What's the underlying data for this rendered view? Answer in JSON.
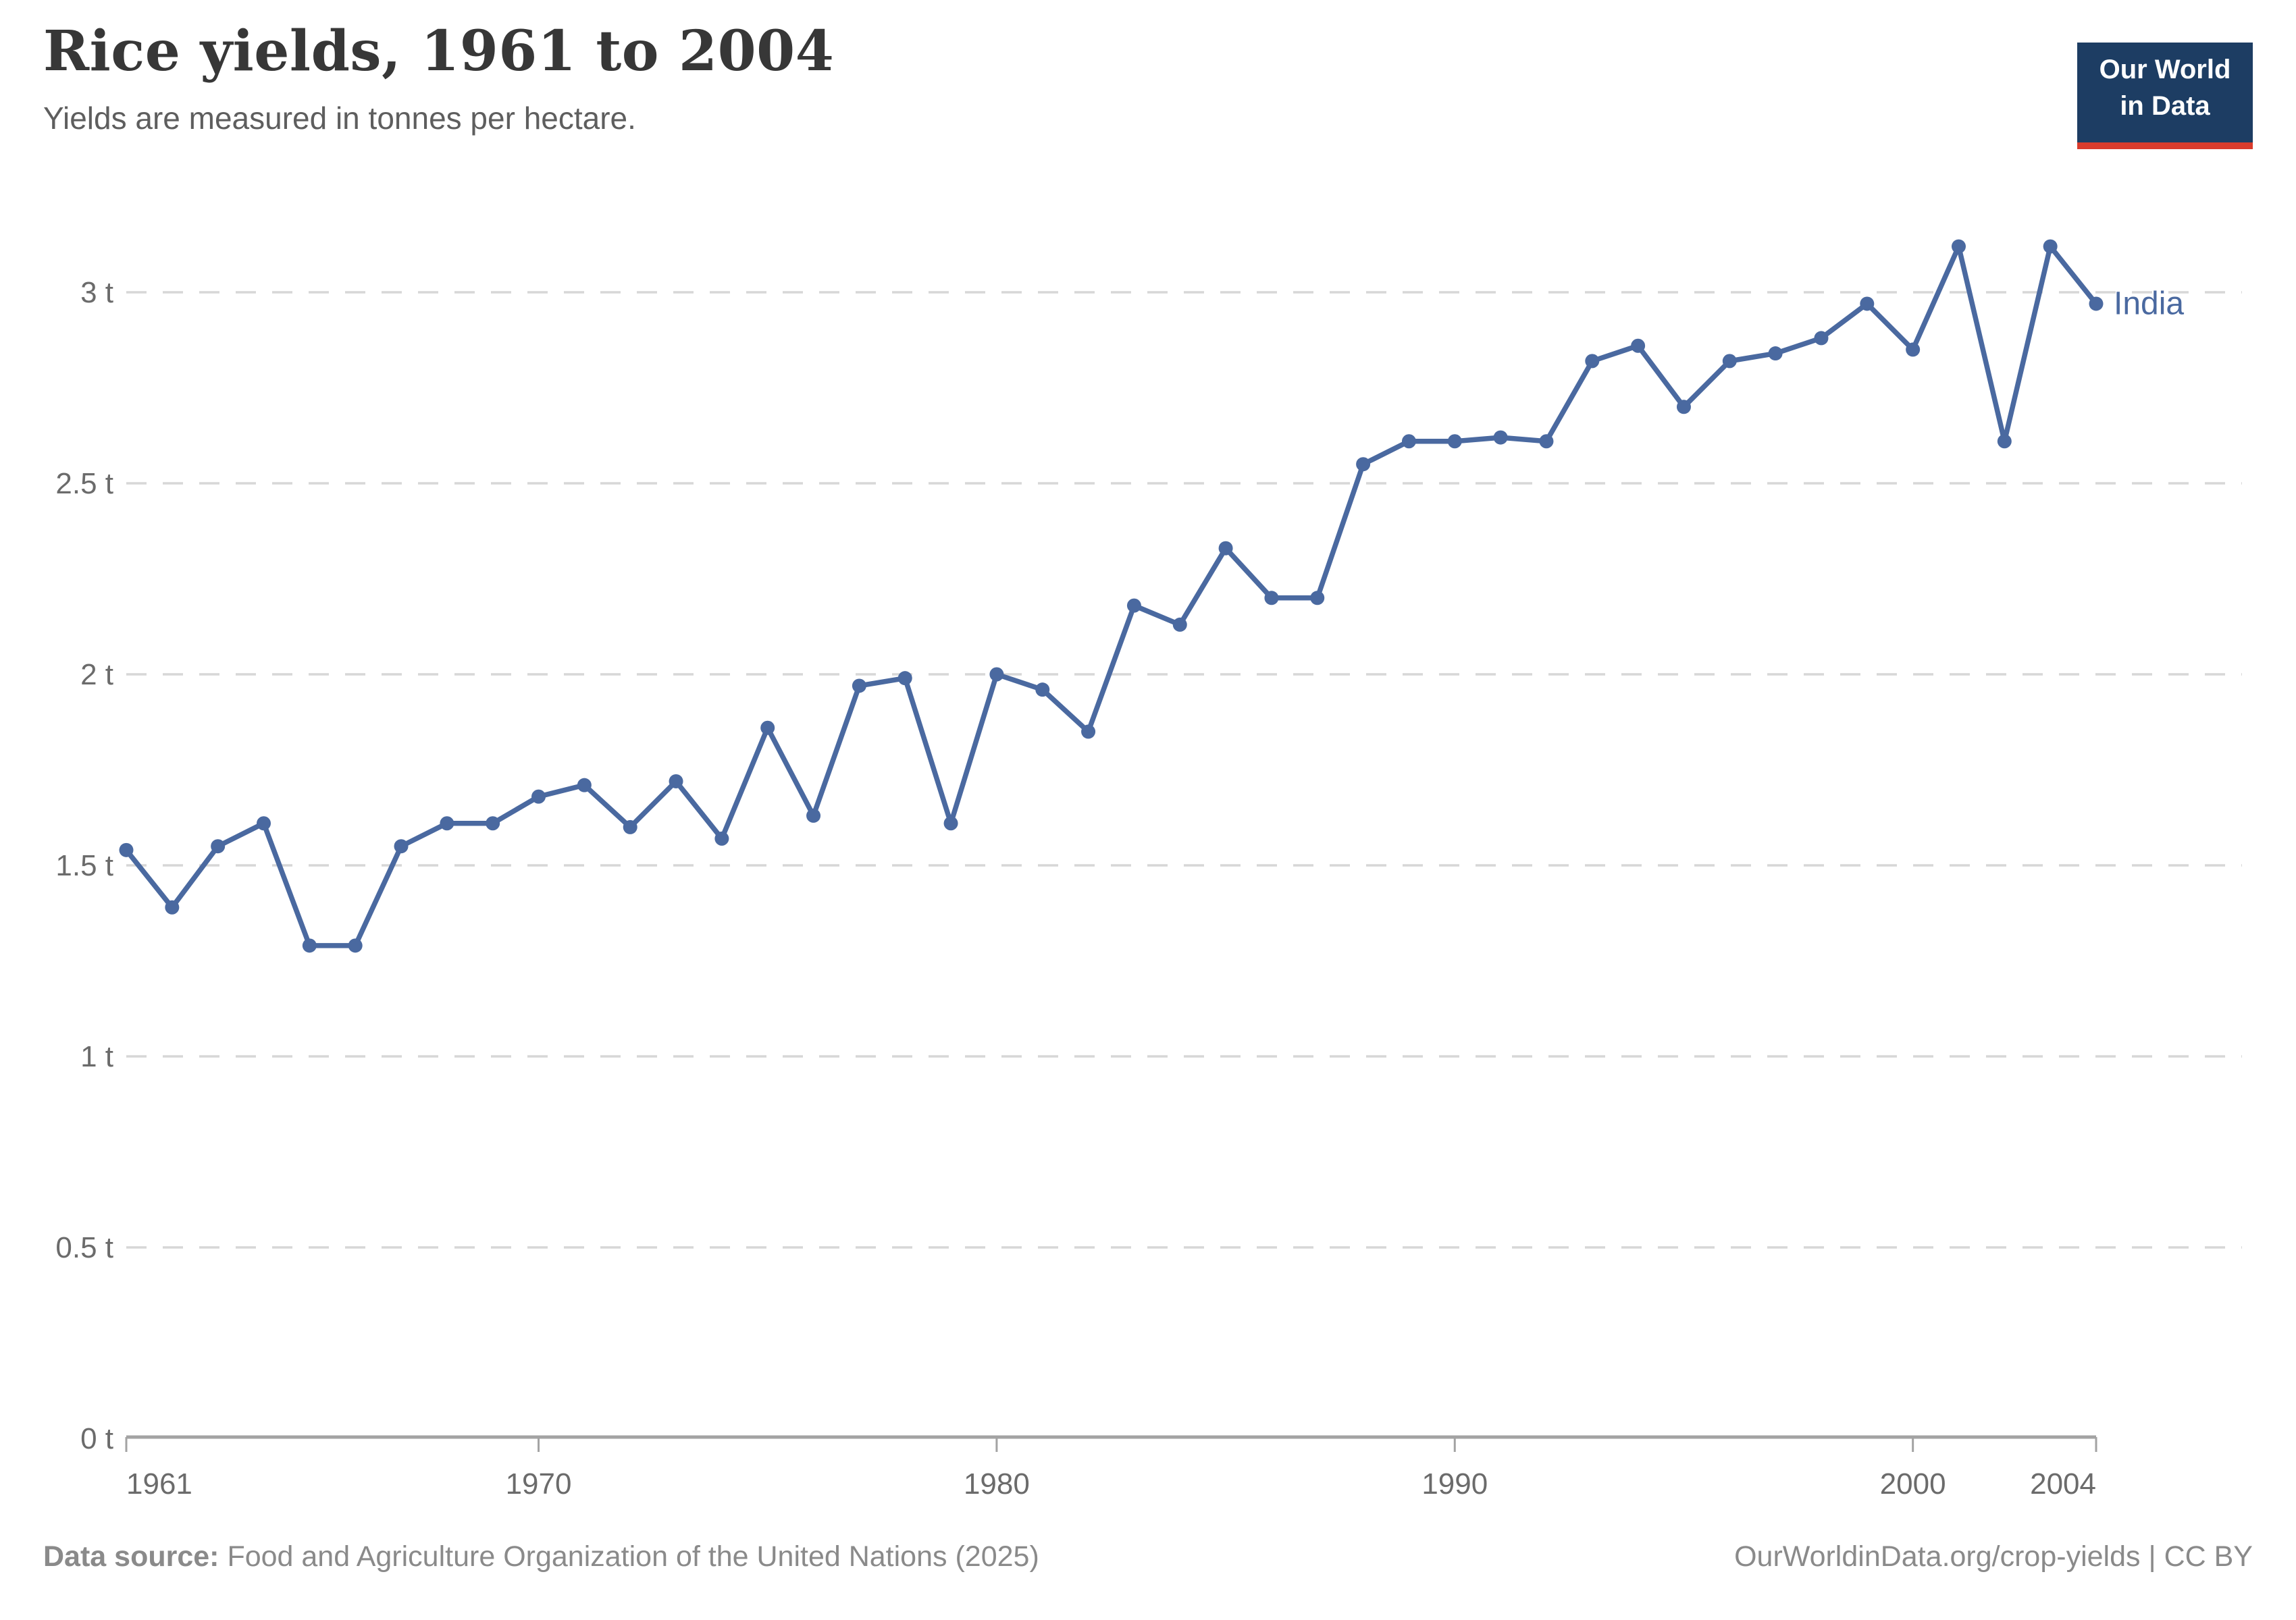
{
  "header": {
    "title": "Rice yields, 1961 to 2004",
    "subtitle": "Yields are measured in tonnes per hectare."
  },
  "logo": {
    "line1": "Our World",
    "line2": "in Data"
  },
  "chart_data": {
    "type": "line",
    "title": "Rice yields, 1961 to 2004",
    "subtitle": "Yields are measured in tonnes per hectare.",
    "unit": "tonnes per hectare",
    "xlim": [
      1961,
      2004
    ],
    "ylim": [
      0,
      3.2
    ],
    "grid": "horizontal-dashed",
    "legend_position": "end-of-line-label",
    "x_ticks": [
      "1961",
      "1970",
      "1980",
      "1990",
      "2000",
      "2004"
    ],
    "y_ticks": [
      {
        "value": 0,
        "label": "0 t"
      },
      {
        "value": 0.5,
        "label": "0.5 t"
      },
      {
        "value": 1,
        "label": "1 t"
      },
      {
        "value": 1.5,
        "label": "1.5 t"
      },
      {
        "value": 2,
        "label": "2 t"
      },
      {
        "value": 2.5,
        "label": "2.5 t"
      },
      {
        "value": 3,
        "label": "3 t"
      }
    ],
    "series": [
      {
        "name": "India",
        "color": "#4A69A0",
        "x": [
          1961,
          1962,
          1963,
          1964,
          1965,
          1966,
          1967,
          1968,
          1969,
          1970,
          1971,
          1972,
          1973,
          1974,
          1975,
          1976,
          1977,
          1978,
          1979,
          1980,
          1981,
          1982,
          1983,
          1984,
          1985,
          1986,
          1987,
          1988,
          1989,
          1990,
          1991,
          1992,
          1993,
          1994,
          1995,
          1996,
          1997,
          1998,
          1999,
          2000,
          2001,
          2002,
          2003,
          2004
        ],
        "values": [
          1.54,
          1.39,
          1.55,
          1.61,
          1.29,
          1.29,
          1.55,
          1.61,
          1.61,
          1.68,
          1.71,
          1.6,
          1.72,
          1.57,
          1.86,
          1.63,
          1.97,
          1.99,
          1.61,
          2.0,
          1.96,
          1.85,
          2.18,
          2.13,
          2.33,
          2.2,
          2.2,
          2.55,
          2.61,
          2.61,
          2.62,
          2.61,
          2.82,
          2.86,
          2.7,
          2.82,
          2.84,
          2.88,
          2.97,
          2.85,
          3.12,
          2.61,
          3.12,
          2.97
        ]
      }
    ]
  },
  "footer": {
    "source_label": "Data source:",
    "source_text": "Food and Agriculture Organization of the United Nations (2025)",
    "credit": "OurWorldinData.org/crop-yields | CC BY"
  },
  "colors": {
    "line": "#4A69A0",
    "gridline": "#D7D7D7",
    "axis": "#A3A3A3",
    "tick_text": "#6B6B6B",
    "title": "#373737",
    "subtitle": "#5E5E5E",
    "footer": "#8A8A8A",
    "logo_bg": "#1D3D63",
    "logo_accent": "#D93B2C"
  }
}
